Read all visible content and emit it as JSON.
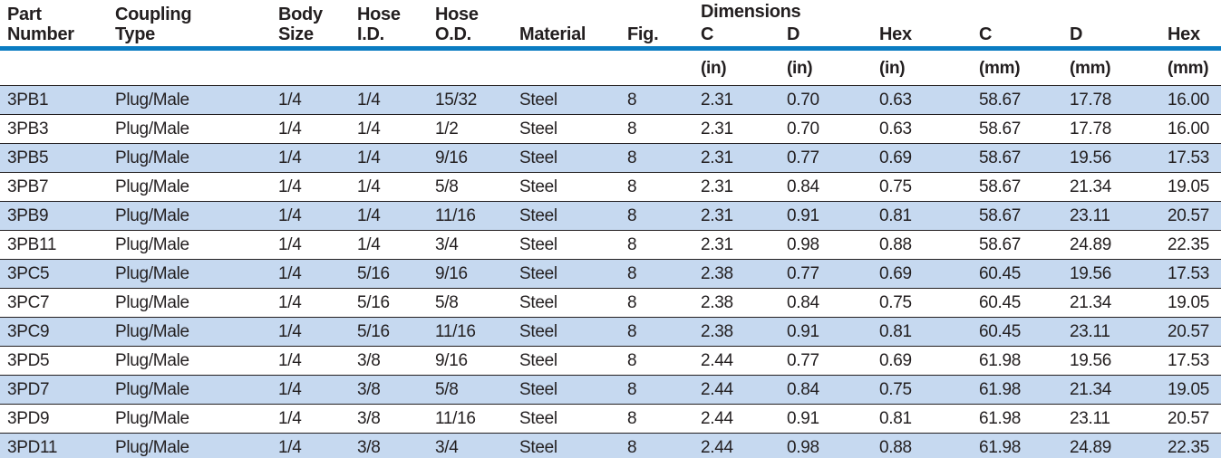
{
  "table": {
    "dimensions_group_label": "Dimensions",
    "columns": [
      {
        "lines": [
          "Part",
          "Number"
        ]
      },
      {
        "lines": [
          "Coupling",
          "Type"
        ]
      },
      {
        "lines": [
          "Body",
          "Size"
        ]
      },
      {
        "lines": [
          "Hose",
          "I.D."
        ]
      },
      {
        "lines": [
          "Hose",
          "O.D."
        ]
      },
      {
        "lines": [
          "Material"
        ]
      },
      {
        "lines": [
          "Fig."
        ]
      }
    ],
    "dim_headers": [
      "C",
      "D",
      "Hex",
      "C",
      "D",
      "Hex"
    ],
    "unit_labels": [
      "(in)",
      "(in)",
      "(in)",
      "(mm)",
      "(mm)",
      "(mm)"
    ],
    "rows": [
      [
        "3PB1",
        "Plug/Male",
        "1/4",
        "1/4",
        "15/32",
        "Steel",
        "8",
        "2.31",
        "0.70",
        "0.63",
        "58.67",
        "17.78",
        "16.00"
      ],
      [
        "3PB3",
        "Plug/Male",
        "1/4",
        "1/4",
        "1/2",
        "Steel",
        "8",
        "2.31",
        "0.70",
        "0.63",
        "58.67",
        "17.78",
        "16.00"
      ],
      [
        "3PB5",
        "Plug/Male",
        "1/4",
        "1/4",
        "9/16",
        "Steel",
        "8",
        "2.31",
        "0.77",
        "0.69",
        "58.67",
        "19.56",
        "17.53"
      ],
      [
        "3PB7",
        "Plug/Male",
        "1/4",
        "1/4",
        "5/8",
        "Steel",
        "8",
        "2.31",
        "0.84",
        "0.75",
        "58.67",
        "21.34",
        "19.05"
      ],
      [
        "3PB9",
        "Plug/Male",
        "1/4",
        "1/4",
        "11/16",
        "Steel",
        "8",
        "2.31",
        "0.91",
        "0.81",
        "58.67",
        "23.11",
        "20.57"
      ],
      [
        "3PB11",
        "Plug/Male",
        "1/4",
        "1/4",
        "3/4",
        "Steel",
        "8",
        "2.31",
        "0.98",
        "0.88",
        "58.67",
        "24.89",
        "22.35"
      ],
      [
        "3PC5",
        "Plug/Male",
        "1/4",
        "5/16",
        "9/16",
        "Steel",
        "8",
        "2.38",
        "0.77",
        "0.69",
        "60.45",
        "19.56",
        "17.53"
      ],
      [
        "3PC7",
        "Plug/Male",
        "1/4",
        "5/16",
        "5/8",
        "Steel",
        "8",
        "2.38",
        "0.84",
        "0.75",
        "60.45",
        "21.34",
        "19.05"
      ],
      [
        "3PC9",
        "Plug/Male",
        "1/4",
        "5/16",
        "11/16",
        "Steel",
        "8",
        "2.38",
        "0.91",
        "0.81",
        "60.45",
        "23.11",
        "20.57"
      ],
      [
        "3PD5",
        "Plug/Male",
        "1/4",
        "3/8",
        "9/16",
        "Steel",
        "8",
        "2.44",
        "0.77",
        "0.69",
        "61.98",
        "19.56",
        "17.53"
      ],
      [
        "3PD7",
        "Plug/Male",
        "1/4",
        "3/8",
        "5/8",
        "Steel",
        "8",
        "2.44",
        "0.84",
        "0.75",
        "61.98",
        "21.34",
        "19.05"
      ],
      [
        "3PD9",
        "Plug/Male",
        "1/4",
        "3/8",
        "11/16",
        "Steel",
        "8",
        "2.44",
        "0.91",
        "0.81",
        "61.98",
        "23.11",
        "20.57"
      ],
      [
        "3PD11",
        "Plug/Male",
        "1/4",
        "3/8",
        "3/4",
        "Steel",
        "8",
        "2.44",
        "0.98",
        "0.88",
        "61.98",
        "24.89",
        "22.35"
      ]
    ]
  },
  "colors": {
    "header_rule_blue": "#0a7cc2",
    "row_alt_blue": "#c6d9f0",
    "row_separator": "#231f20",
    "text": "#231f20"
  }
}
